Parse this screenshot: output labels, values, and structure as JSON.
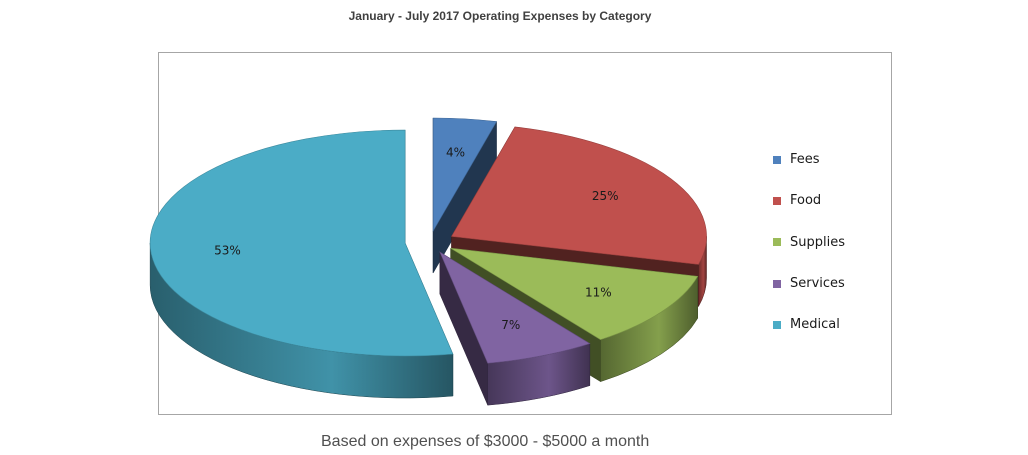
{
  "chart_data": {
    "type": "pie",
    "title": "January - July 2017 Operating Expenses by Category",
    "categories": [
      "Fees",
      "Food",
      "Supplies",
      "Services",
      "Medical"
    ],
    "values": [
      4,
      25,
      11,
      7,
      53
    ],
    "data_labels": [
      "4%",
      "25%",
      "11%",
      "7%",
      "53%"
    ],
    "colors": [
      "#4f81bd",
      "#c0504d",
      "#9bbb59",
      "#8064a2",
      "#4bacc6"
    ],
    "style": "3d-exploded",
    "legend_position": "right"
  },
  "caption": "Based on expenses of $3000 - $5000 a month"
}
